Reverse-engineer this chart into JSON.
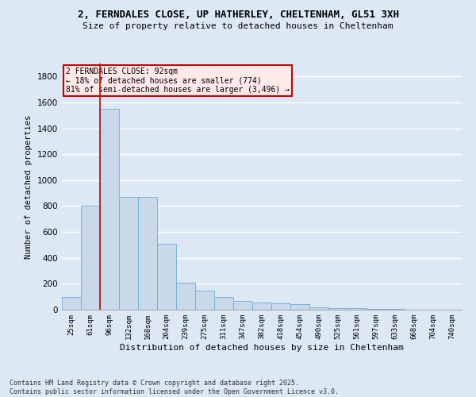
{
  "title_line1": "2, FERNDALES CLOSE, UP HATHERLEY, CHELTENHAM, GL51 3XH",
  "title_line2": "Size of property relative to detached houses in Cheltenham",
  "xlabel": "Distribution of detached houses by size in Cheltenham",
  "ylabel": "Number of detached properties",
  "categories": [
    "25sqm",
    "61sqm",
    "96sqm",
    "132sqm",
    "168sqm",
    "204sqm",
    "239sqm",
    "275sqm",
    "311sqm",
    "347sqm",
    "382sqm",
    "418sqm",
    "454sqm",
    "490sqm",
    "525sqm",
    "561sqm",
    "597sqm",
    "633sqm",
    "668sqm",
    "704sqm",
    "740sqm"
  ],
  "values": [
    100,
    800,
    1550,
    870,
    870,
    510,
    210,
    150,
    100,
    70,
    55,
    50,
    45,
    20,
    12,
    10,
    8,
    5,
    3,
    2,
    2
  ],
  "bar_color": "#c9d9ea",
  "bar_edge_color": "#6baed6",
  "vline_x": 1.5,
  "vline_color": "#cc0000",
  "annotation_text": "2 FERNDALES CLOSE: 92sqm\n← 18% of detached houses are smaller (774)\n81% of semi-detached houses are larger (3,496) →",
  "annotation_box_facecolor": "#ffe8e8",
  "annotation_box_edge_color": "#cc0000",
  "ylim": [
    0,
    1900
  ],
  "yticks": [
    0,
    200,
    400,
    600,
    800,
    1000,
    1200,
    1400,
    1600,
    1800
  ],
  "background_color": "#dde8f5",
  "grid_color": "#ffffff",
  "footnote": "Contains HM Land Registry data © Crown copyright and database right 2025.\nContains public sector information licensed under the Open Government Licence v3.0.",
  "title_fontsize": 9,
  "subtitle_fontsize": 8
}
